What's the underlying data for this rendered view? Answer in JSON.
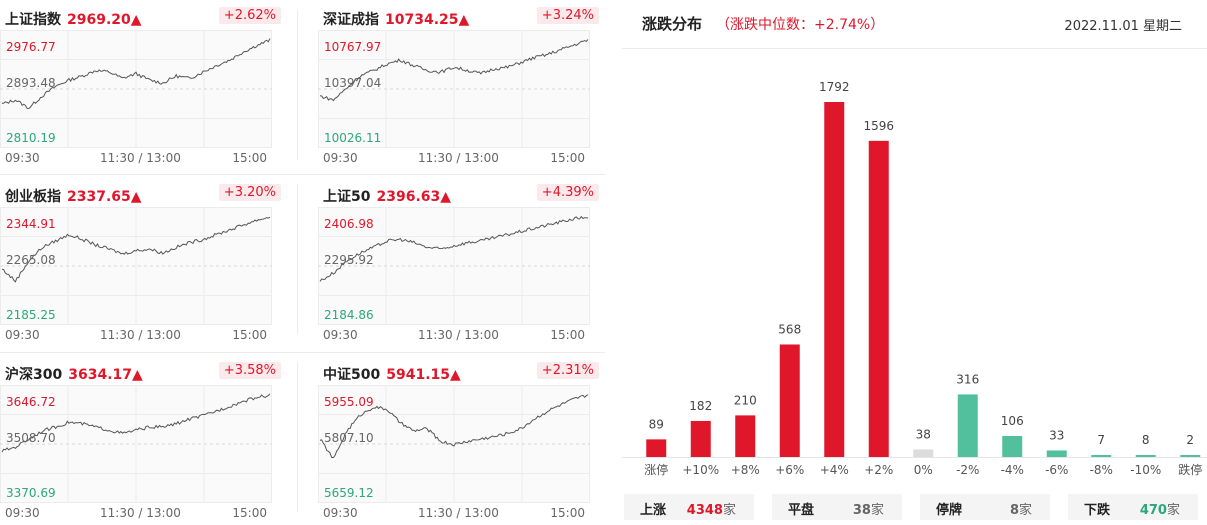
{
  "indices": [
    {
      "name": "上证指数",
      "value": "2969.20▲",
      "pct": "+2.62%",
      "ymax": "2976.77",
      "ymid": "2893.48",
      "ymin": "2810.19",
      "x_labels": [
        "09:30",
        "11:30 / 13:00",
        "15:00"
      ],
      "trend": [
        0.2,
        0.25,
        0.15,
        0.3,
        0.42,
        0.5,
        0.55,
        0.62,
        0.6,
        0.52,
        0.58,
        0.5,
        0.46,
        0.55,
        0.52,
        0.6,
        0.68,
        0.75,
        0.85,
        0.93,
        1.0
      ]
    },
    {
      "name": "深证成指",
      "value": "10734.25▲",
      "pct": "+3.24%",
      "ymax": "10767.97",
      "ymid": "10397.04",
      "ymin": "10026.11",
      "x_labels": [
        "09:30",
        "11:30 / 13:00",
        "15:00"
      ],
      "trend": [
        0.3,
        0.25,
        0.4,
        0.55,
        0.62,
        0.7,
        0.75,
        0.68,
        0.62,
        0.6,
        0.66,
        0.62,
        0.58,
        0.64,
        0.66,
        0.72,
        0.78,
        0.82,
        0.88,
        0.94,
        1.0
      ]
    },
    {
      "name": "创业板指",
      "value": "2337.65▲",
      "pct": "+3.20%",
      "ymax": "2344.91",
      "ymid": "2265.08",
      "ymin": "2185.25",
      "x_labels": [
        "09:30",
        "11:30 / 13:00",
        "15:00"
      ],
      "trend": [
        0.35,
        0.2,
        0.45,
        0.62,
        0.7,
        0.78,
        0.72,
        0.65,
        0.6,
        0.54,
        0.58,
        0.6,
        0.55,
        0.62,
        0.68,
        0.72,
        0.78,
        0.84,
        0.9,
        0.96,
        1.0
      ]
    },
    {
      "name": "上证50",
      "value": "2396.63▲",
      "pct": "+4.39%",
      "ymax": "2406.98",
      "ymid": "2295.92",
      "ymin": "2184.86",
      "x_labels": [
        "09:30",
        "11:30 / 13:00",
        "15:00"
      ],
      "trend": [
        0.2,
        0.3,
        0.45,
        0.55,
        0.62,
        0.7,
        0.72,
        0.68,
        0.62,
        0.6,
        0.64,
        0.68,
        0.7,
        0.74,
        0.78,
        0.82,
        0.86,
        0.9,
        0.94,
        0.98,
        1.0
      ]
    },
    {
      "name": "沪深300",
      "value": "3634.17▲",
      "pct": "+3.58%",
      "ymax": "3646.72",
      "ymid": "3508.70",
      "ymin": "3370.69",
      "x_labels": [
        "09:30",
        "11:30 / 13:00",
        "15:00"
      ],
      "trend": [
        0.3,
        0.35,
        0.45,
        0.55,
        0.6,
        0.66,
        0.64,
        0.6,
        0.56,
        0.52,
        0.56,
        0.6,
        0.6,
        0.64,
        0.7,
        0.74,
        0.8,
        0.86,
        0.92,
        0.97,
        1.0
      ]
    },
    {
      "name": "中证500",
      "value": "5941.15▲",
      "pct": "+2.31%",
      "ymax": "5955.09",
      "ymid": "5807.10",
      "ymin": "5659.12",
      "x_labels": [
        "09:30",
        "11:30 / 13:00",
        "15:00"
      ],
      "trend": [
        0.45,
        0.2,
        0.55,
        0.75,
        0.85,
        0.82,
        0.65,
        0.55,
        0.58,
        0.42,
        0.38,
        0.42,
        0.45,
        0.48,
        0.52,
        0.58,
        0.7,
        0.8,
        0.88,
        0.95,
        1.0
      ]
    }
  ],
  "distribution": {
    "title": "涨跌分布",
    "subtitle": "（涨跌中位数：+2.74%）",
    "date": "2022.11.01 星期二",
    "summary": [
      {
        "label": "上涨",
        "value": "4348",
        "unit": "家",
        "color": "#e0162a"
      },
      {
        "label": "平盘",
        "value": "38",
        "unit": "家",
        "color": "#666666"
      },
      {
        "label": "停牌",
        "value": "8",
        "unit": "家",
        "color": "#666666"
      },
      {
        "label": "下跌",
        "value": "470",
        "unit": "家",
        "color": "#2ca77a"
      }
    ]
  },
  "chart_data": {
    "type": "bar",
    "categories": [
      "涨停",
      "+10%",
      "+8%",
      "+6%",
      "+4%",
      "+2%",
      "0%",
      "-2%",
      "-4%",
      "-6%",
      "-8%",
      "-10%",
      "跌停"
    ],
    "values": [
      89,
      182,
      210,
      568,
      1792,
      1596,
      38,
      316,
      106,
      33,
      7,
      8,
      2
    ],
    "colors": [
      "#e0162a",
      "#e0162a",
      "#e0162a",
      "#e0162a",
      "#e0162a",
      "#e0162a",
      "#dcdcdc",
      "#52c09c",
      "#52c09c",
      "#52c09c",
      "#52c09c",
      "#52c09c",
      "#52c09c"
    ],
    "ylim": [
      0,
      1792
    ]
  }
}
